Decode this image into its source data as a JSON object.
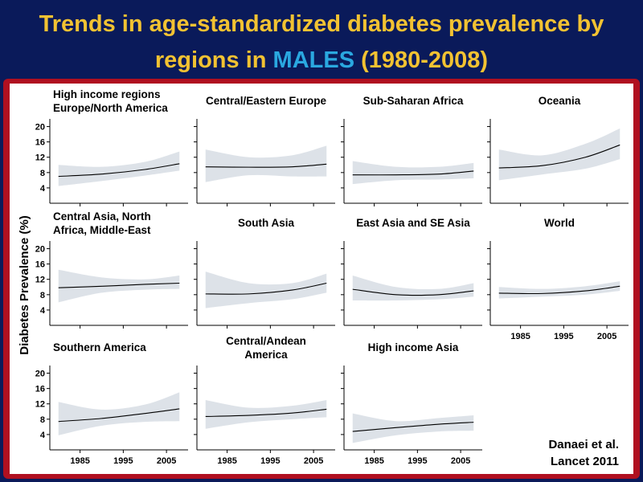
{
  "slide": {
    "title_line1": "Trends in age-standardized diabetes prevalence by",
    "title_line2_prefix": "regions in ",
    "title_line2_highlight": "MALES",
    "title_line2_suffix": "  (1980-2008)",
    "ylabel": "Diabetes Prevalence (%)",
    "source_line1": "Danaei et al.",
    "source_line2": "Lancet 2011"
  },
  "colors": {
    "background": "#0a1a5a",
    "title": "#f2c232",
    "highlight": "#2aa8e0",
    "frame": "#b01020",
    "band": "#dde2e8"
  },
  "chart_data": {
    "type": "line",
    "ylim": [
      0,
      22
    ],
    "yticks": [
      4,
      8,
      12,
      16,
      20
    ],
    "xlim": [
      1978,
      2010
    ],
    "xticks": [
      1985,
      1995,
      2005
    ],
    "panels": [
      {
        "title": [
          "High income regions",
          "Europe/North America"
        ],
        "x": [
          1980,
          1990,
          2000,
          2008
        ],
        "y": [
          7.0,
          7.6,
          8.8,
          10.3
        ],
        "lower": [
          4.5,
          5.8,
          7.2,
          8.5
        ],
        "upper": [
          10.0,
          9.5,
          10.8,
          13.5
        ]
      },
      {
        "title": [
          "Central/Eastern Europe"
        ],
        "x": [
          1980,
          1990,
          2000,
          2008
        ],
        "y": [
          9.5,
          9.4,
          9.5,
          10.2
        ],
        "lower": [
          5.5,
          7.3,
          7.0,
          7.0
        ],
        "upper": [
          14.0,
          12.0,
          12.5,
          15.0
        ]
      },
      {
        "title": [
          "Sub-Saharan Africa"
        ],
        "x": [
          1980,
          1990,
          2000,
          2008
        ],
        "y": [
          7.4,
          7.4,
          7.6,
          8.4
        ],
        "lower": [
          5.0,
          6.0,
          6.2,
          6.5
        ],
        "upper": [
          11.0,
          9.5,
          9.5,
          10.5
        ]
      },
      {
        "title": [
          "Oceania"
        ],
        "x": [
          1980,
          1990,
          2000,
          2008
        ],
        "y": [
          9.2,
          9.8,
          12.0,
          15.2
        ],
        "lower": [
          6.0,
          7.5,
          9.0,
          11.5
        ],
        "upper": [
          14.0,
          12.5,
          15.5,
          19.5
        ]
      },
      {
        "title": [
          "Central Asia, North",
          "Africa, Middle-East"
        ],
        "x": [
          1980,
          1990,
          2000,
          2008
        ],
        "y": [
          9.8,
          10.2,
          10.7,
          11.0
        ],
        "lower": [
          6.0,
          8.5,
          9.3,
          9.5
        ],
        "upper": [
          14.5,
          12.5,
          12.0,
          13.0
        ]
      },
      {
        "title": [
          "South Asia"
        ],
        "x": [
          1980,
          1990,
          2000,
          2008
        ],
        "y": [
          8.2,
          8.2,
          9.2,
          11.0
        ],
        "lower": [
          4.5,
          5.8,
          6.8,
          8.5
        ],
        "upper": [
          14.0,
          11.0,
          11.0,
          13.5
        ]
      },
      {
        "title": [
          "East Asia and SE Asia"
        ],
        "x": [
          1980,
          1990,
          2000,
          2008
        ],
        "y": [
          9.4,
          8.0,
          8.0,
          9.0
        ],
        "lower": [
          6.5,
          6.5,
          6.8,
          7.5
        ],
        "upper": [
          13.0,
          10.0,
          9.5,
          11.0
        ]
      },
      {
        "title": [
          "World"
        ],
        "x": [
          1980,
          1990,
          2000,
          2008
        ],
        "y": [
          8.4,
          8.3,
          9.0,
          10.2
        ],
        "lower": [
          7.0,
          7.5,
          8.0,
          9.0
        ],
        "upper": [
          10.0,
          9.5,
          10.2,
          11.5
        ]
      },
      {
        "title": [
          "Southern America"
        ],
        "x": [
          1980,
          1990,
          2000,
          2008
        ],
        "y": [
          7.4,
          8.2,
          9.5,
          10.7
        ],
        "lower": [
          3.8,
          6.3,
          7.3,
          7.5
        ],
        "upper": [
          12.5,
          10.5,
          11.8,
          15.0
        ]
      },
      {
        "title": [
          "Central/Andean",
          "America"
        ],
        "x": [
          1980,
          1990,
          2000,
          2008
        ],
        "y": [
          8.7,
          9.0,
          9.6,
          10.6
        ],
        "lower": [
          5.5,
          7.2,
          8.0,
          8.5
        ],
        "upper": [
          13.0,
          11.0,
          11.5,
          13.0
        ]
      },
      {
        "title": [
          "High income Asia"
        ],
        "x": [
          1980,
          1990,
          2000,
          2008
        ],
        "y": [
          4.8,
          5.8,
          6.7,
          7.2
        ],
        "lower": [
          1.8,
          3.8,
          4.8,
          5.0
        ],
        "upper": [
          9.5,
          7.5,
          8.3,
          9.0
        ]
      }
    ]
  }
}
